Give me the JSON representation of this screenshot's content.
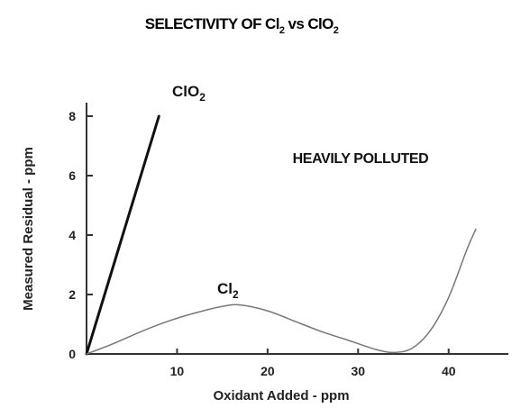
{
  "chart_data": {
    "type": "line",
    "title": {
      "pre": "SELECTIVITY OF Cl",
      "sub1": "2",
      "mid": " vs ClO",
      "sub2": "2"
    },
    "xlabel": "Oxidant Added - ppm",
    "ylabel": "Measured Residual - ppm",
    "xlim": [
      0,
      46
    ],
    "ylim": [
      0,
      8
    ],
    "xticks": [
      10,
      20,
      30,
      40
    ],
    "yticks": [
      0,
      2,
      4,
      6,
      8
    ],
    "annotation": "HEAVILY POLLUTED",
    "series": [
      {
        "name": "ClO",
        "subscript": "2",
        "color": "#111111",
        "width": 3,
        "points": [
          [
            0,
            0
          ],
          [
            8,
            8
          ]
        ]
      },
      {
        "name": "Cl",
        "subscript": "2",
        "color": "#777777",
        "width": 1.5,
        "points": [
          [
            0,
            0
          ],
          [
            3,
            0.35
          ],
          [
            6,
            0.75
          ],
          [
            9,
            1.1
          ],
          [
            12,
            1.38
          ],
          [
            15,
            1.6
          ],
          [
            17,
            1.65
          ],
          [
            20,
            1.45
          ],
          [
            23,
            1.1
          ],
          [
            26,
            0.75
          ],
          [
            29,
            0.45
          ],
          [
            32,
            0.15
          ],
          [
            34,
            0.05
          ],
          [
            36,
            0.2
          ],
          [
            38,
            0.8
          ],
          [
            40,
            1.9
          ],
          [
            42,
            3.5
          ],
          [
            43,
            4.2
          ]
        ]
      }
    ]
  }
}
